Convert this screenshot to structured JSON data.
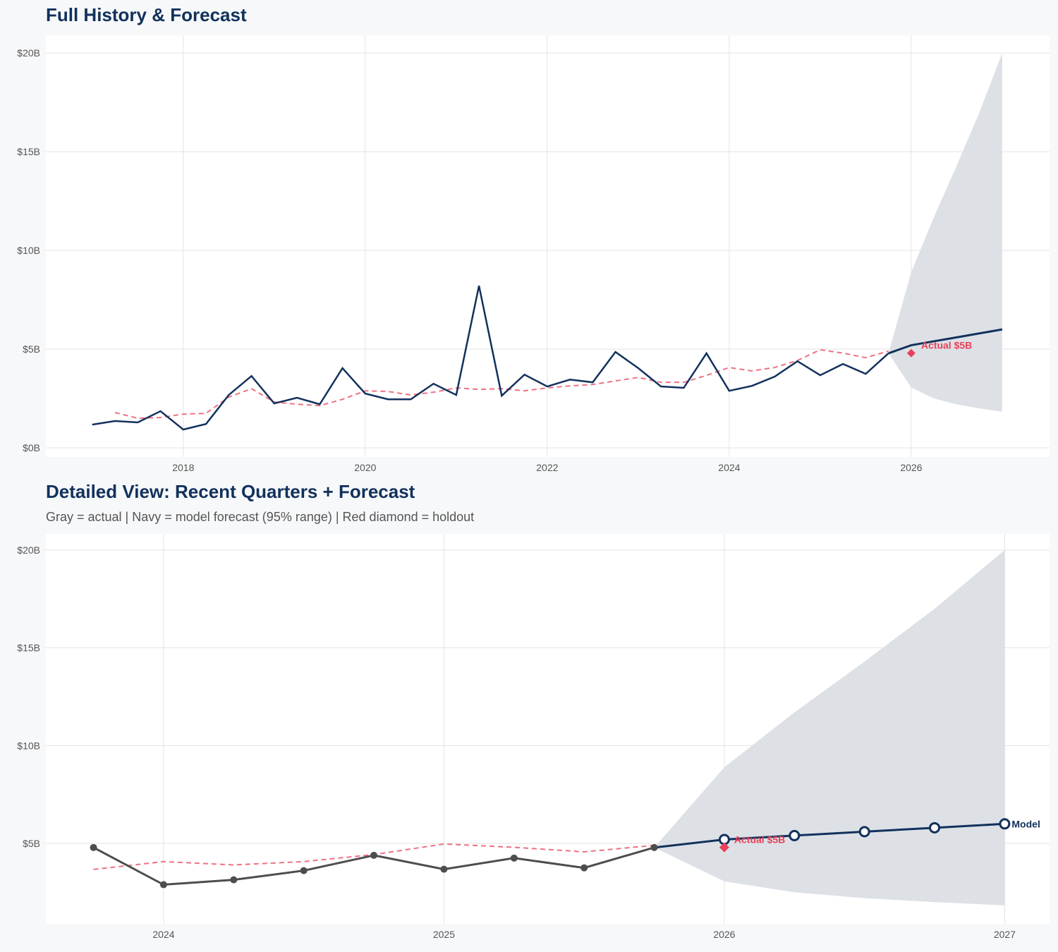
{
  "colors": {
    "navy": "#12315c",
    "gray": "#4d4d4d",
    "red": "#e8415a",
    "red_dashed": "#ee7183",
    "band": "#dbdfe5",
    "grid": "#e3e3e3"
  },
  "chart_data": [
    {
      "type": "line",
      "title": "Full History & Forecast",
      "xlim": [
        2016.49,
        2027.52
      ],
      "ylim": [
        -0.46,
        20.9
      ],
      "x_ticks": [
        2018,
        2020,
        2022,
        2024,
        2026
      ],
      "x_tick_labels": [
        "2018",
        "2020",
        "2022",
        "2024",
        "2026"
      ],
      "y_ticks": [
        0,
        5,
        10,
        15,
        20
      ],
      "y_tick_labels": [
        "$0B",
        "$5B",
        "$10B",
        "$15B",
        "$20B"
      ],
      "grid": true,
      "actual": {
        "x": [
          2017.0,
          2017.25,
          2017.5,
          2017.75,
          2018.0,
          2018.25,
          2018.5,
          2018.75,
          2019.0,
          2019.25,
          2019.5,
          2019.75,
          2020.0,
          2020.25,
          2020.5,
          2020.75,
          2021.0,
          2021.25,
          2021.5,
          2021.75,
          2022.0,
          2022.25,
          2022.5,
          2022.75,
          2023.0,
          2023.25,
          2023.5,
          2023.75,
          2024.0,
          2024.25,
          2024.5,
          2024.75,
          2025.0,
          2025.25,
          2025.5,
          2025.75
        ],
        "y": [
          1.18,
          1.36,
          1.29,
          1.86,
          0.93,
          1.21,
          2.68,
          3.64,
          2.25,
          2.54,
          2.21,
          4.04,
          2.75,
          2.46,
          2.46,
          3.25,
          2.68,
          8.21,
          2.64,
          3.71,
          3.11,
          3.46,
          3.32,
          4.86,
          4.04,
          3.11,
          3.04,
          4.79,
          2.89,
          3.14,
          3.61,
          4.39,
          3.68,
          4.25,
          3.75,
          4.79
        ]
      },
      "smoothed": {
        "x": [
          2017.25,
          2017.5,
          2017.75,
          2018.0,
          2018.25,
          2018.5,
          2018.75,
          2019.0,
          2019.25,
          2019.5,
          2019.75,
          2020.0,
          2020.25,
          2020.5,
          2020.75,
          2021.0,
          2021.25,
          2021.5,
          2021.75,
          2022.0,
          2022.25,
          2022.5,
          2022.75,
          2023.0,
          2023.25,
          2023.5,
          2023.75,
          2024.0,
          2024.25,
          2024.5,
          2024.75,
          2025.0,
          2025.25,
          2025.5,
          2025.75
        ],
        "y": [
          1.79,
          1.5,
          1.54,
          1.71,
          1.75,
          2.57,
          3.0,
          2.32,
          2.21,
          2.14,
          2.46,
          2.89,
          2.86,
          2.68,
          2.82,
          3.04,
          2.96,
          3.0,
          2.89,
          3.04,
          3.14,
          3.21,
          3.39,
          3.57,
          3.32,
          3.32,
          3.67,
          4.07,
          3.9,
          4.07,
          4.43,
          4.97,
          4.8,
          4.57,
          4.9
        ]
      },
      "forecast": {
        "x": [
          2025.75,
          2026.0,
          2026.25,
          2026.5,
          2026.75,
          2027.0
        ],
        "y": [
          4.79,
          5.2,
          5.4,
          5.6,
          5.8,
          6.0
        ],
        "lower": [
          4.79,
          3.06,
          2.5,
          2.2,
          2.0,
          1.83
        ],
        "upper": [
          4.79,
          8.9,
          11.7,
          14.3,
          17.0,
          20.0
        ]
      },
      "holdout": {
        "x": 2026.0,
        "y": 4.8,
        "label": "Actual $5B"
      }
    },
    {
      "type": "line",
      "title": "Detailed View: Recent Quarters + Forecast",
      "subtitle": "Gray = actual  |  Navy = model forecast (95% range)  |  Red diamond = holdout",
      "xlim": [
        2023.58,
        2027.16
      ],
      "ylim": [
        0.89,
        20.83
      ],
      "x_ticks": [
        2024,
        2025,
        2026,
        2027
      ],
      "x_tick_labels": [
        "2024",
        "2025",
        "2026",
        "2027"
      ],
      "y_ticks": [
        5,
        10,
        15,
        20
      ],
      "y_tick_labels": [
        "$5B",
        "$10B",
        "$15B",
        "$20B"
      ],
      "grid": true,
      "actual": {
        "x": [
          2023.75,
          2024.0,
          2024.25,
          2024.5,
          2024.75,
          2025.0,
          2025.25,
          2025.5,
          2025.75
        ],
        "y": [
          4.79,
          2.89,
          3.14,
          3.61,
          4.39,
          3.68,
          4.25,
          3.75,
          4.79
        ]
      },
      "smoothed": {
        "x": [
          2023.75,
          2024.0,
          2024.25,
          2024.5,
          2024.75,
          2025.0,
          2025.25,
          2025.5,
          2025.75
        ],
        "y": [
          3.67,
          4.07,
          3.9,
          4.07,
          4.43,
          4.97,
          4.8,
          4.57,
          4.9
        ]
      },
      "forecast": {
        "x": [
          2025.75,
          2026.0,
          2026.25,
          2026.5,
          2026.75,
          2027.0
        ],
        "y": [
          4.79,
          5.2,
          5.4,
          5.6,
          5.8,
          6.0
        ],
        "lower": [
          4.79,
          3.06,
          2.5,
          2.2,
          2.0,
          1.83
        ],
        "upper": [
          4.79,
          8.9,
          11.7,
          14.3,
          17.0,
          20.0
        ],
        "end_label": "Model"
      },
      "holdout": {
        "x": 2026.0,
        "y": 4.8,
        "label": "Actual $5B"
      }
    }
  ]
}
